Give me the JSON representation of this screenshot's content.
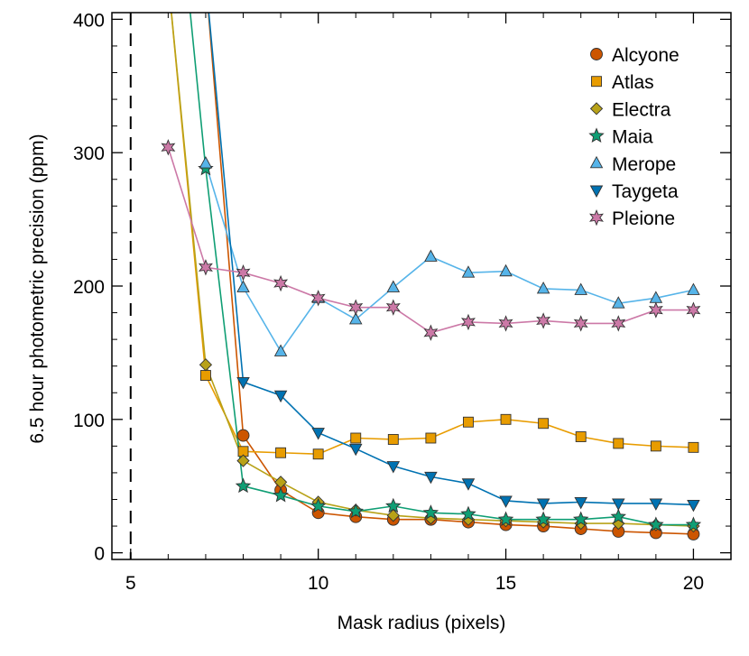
{
  "chart_data": {
    "type": "line",
    "xlabel": "Mask radius (pixels)",
    "ylabel": "6.5 hour photometric precision (ppm)",
    "xlim": [
      4.5,
      21
    ],
    "ylim": [
      -5,
      405
    ],
    "xticks": [
      5,
      10,
      15,
      20
    ],
    "yticks": [
      0,
      100,
      200,
      300,
      400
    ],
    "reference_line": {
      "x": 5,
      "style": "dashed",
      "color": "#000000"
    },
    "grid": false,
    "legend_position": "top-right",
    "series": [
      {
        "name": "Alcyone",
        "color": "#cc5500",
        "marker": "circle",
        "x": [
          7,
          8,
          9,
          10,
          11,
          12,
          13,
          14,
          15,
          16,
          17,
          18,
          19,
          20
        ],
        "y": [
          430,
          88,
          47,
          30,
          27,
          25,
          25,
          23,
          21,
          20,
          18,
          16,
          15,
          14
        ]
      },
      {
        "name": "Atlas",
        "color": "#e89c00",
        "marker": "square",
        "x": [
          6,
          7,
          8,
          9,
          10,
          11,
          12,
          13,
          14,
          15,
          16,
          17,
          18,
          19,
          20
        ],
        "y": [
          430,
          133,
          76,
          75,
          74,
          86,
          85,
          86,
          98,
          100,
          97,
          87,
          82,
          80,
          79
        ]
      },
      {
        "name": "Electra",
        "color": "#b8a218",
        "marker": "diamond",
        "x": [
          6,
          7,
          8,
          9,
          10,
          11,
          12,
          13,
          14,
          15,
          16,
          17,
          18,
          19,
          20
        ],
        "y": [
          430,
          141,
          69,
          53,
          38,
          32,
          28,
          26,
          25,
          24,
          23,
          22,
          22,
          21,
          20
        ]
      },
      {
        "name": "Maia",
        "color": "#0f9e74",
        "marker": "star5",
        "x": [
          6.5,
          7,
          8,
          9,
          10,
          11,
          12,
          13,
          14,
          15,
          16,
          17,
          18,
          19,
          20
        ],
        "y": [
          430,
          288,
          50,
          43,
          35,
          31,
          35,
          30,
          29,
          25,
          25,
          25,
          27,
          21,
          21
        ]
      },
      {
        "name": "Merope",
        "color": "#56b4e9",
        "marker": "triangle-up",
        "x": [
          7,
          8,
          9,
          10,
          11,
          12,
          13,
          14,
          15,
          16,
          17,
          18,
          19,
          20
        ],
        "y": [
          292,
          199,
          151,
          191,
          175,
          199,
          222,
          210,
          211,
          198,
          197,
          187,
          191,
          197
        ]
      },
      {
        "name": "Taygeta",
        "color": "#0072b2",
        "marker": "triangle-down",
        "x": [
          7,
          8,
          9,
          10,
          11,
          12,
          13,
          14,
          15,
          16,
          17,
          18,
          19,
          20
        ],
        "y": [
          430,
          128,
          118,
          90,
          78,
          65,
          57,
          52,
          39,
          37,
          38,
          37,
          37,
          36
        ]
      },
      {
        "name": "Pleione",
        "color": "#cc79a7",
        "marker": "star6",
        "x": [
          6,
          7,
          8,
          9,
          10,
          11,
          12,
          13,
          14,
          15,
          16,
          17,
          18,
          19,
          20
        ],
        "y": [
          304,
          214,
          210,
          202,
          191,
          184,
          184,
          165,
          173,
          172,
          174,
          172,
          172,
          182,
          182
        ]
      }
    ]
  }
}
